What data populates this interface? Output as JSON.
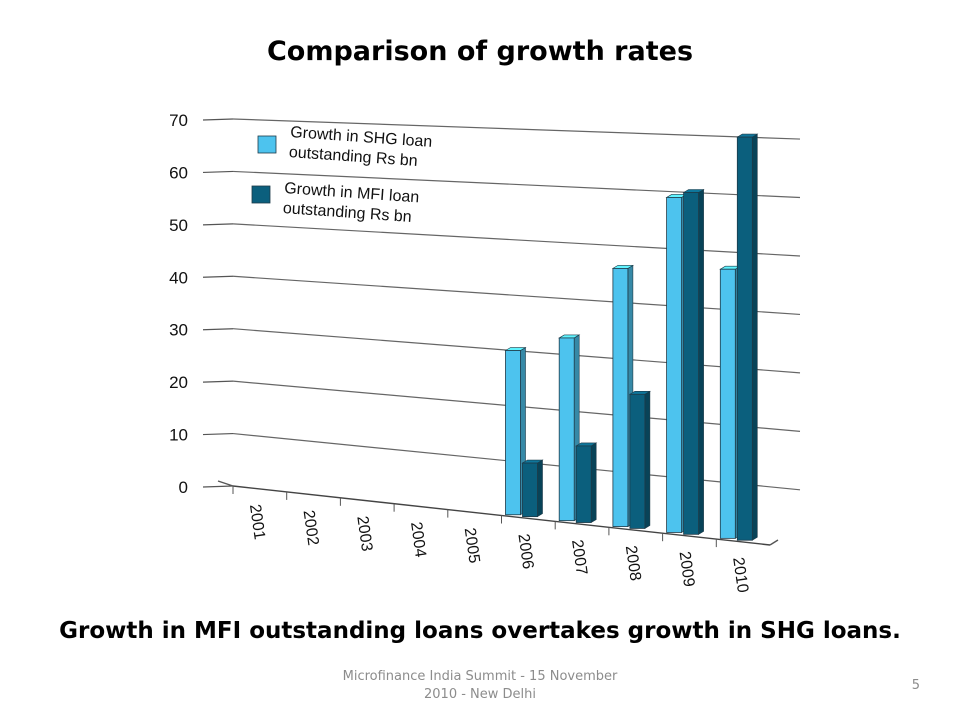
{
  "slide": {
    "title": "Comparison of growth rates",
    "caption": "Growth in MFI outstanding loans overtakes growth in SHG loans.",
    "footer": "Microfinance India Summit - 15 November 2010 - New Delhi",
    "page_number": "5"
  },
  "chart_data": {
    "type": "bar",
    "title": "",
    "xlabel": "",
    "ylabel": "",
    "ylim": [
      0,
      70
    ],
    "yticks": [
      "0",
      "10",
      "20",
      "30",
      "40",
      "50",
      "60",
      "70"
    ],
    "categories": [
      "2001",
      "2002",
      "2003",
      "2004",
      "2005",
      "2006",
      "2007",
      "2008",
      "2009",
      "2010"
    ],
    "series": [
      {
        "name": "Growth in SHG loan outstanding Rs bn",
        "color": "#4dc3ee",
        "values": [
          0,
          0,
          0,
          0,
          0,
          30,
          33,
          46,
          59,
          47
        ]
      },
      {
        "name": "Growth in MFI loan outstanding Rs bn",
        "color": "#0b5f7d",
        "values": [
          0,
          0,
          0,
          0,
          0,
          10,
          14,
          24,
          60,
          70
        ]
      }
    ],
    "legend": "top-left",
    "grid": true,
    "style": "3d-perspective"
  }
}
